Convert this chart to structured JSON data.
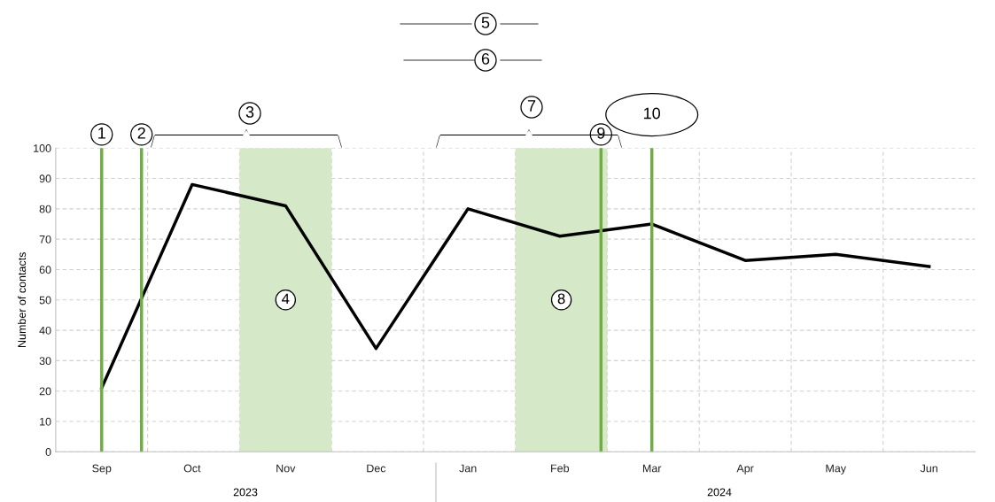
{
  "chart_data": {
    "type": "line",
    "ylabel": "Number of contacts",
    "x": [
      "2023-09-16",
      "2023-10-16",
      "2023-11-16",
      "2023-12-16",
      "2024-01-16",
      "2024-02-15",
      "2024-03-16",
      "2024-04-16",
      "2024-05-16",
      "2024-06-16"
    ],
    "series": [
      {
        "color": "#000000",
        "values": [
          21,
          88,
          81,
          34,
          80,
          71,
          75,
          63,
          65,
          61
        ]
      }
    ],
    "xlim": [
      "2023-09-01",
      "2024-07-01"
    ],
    "xticks": [
      {
        "value": "2023-09-16",
        "label": "Sep"
      },
      {
        "value": "2023-10-16",
        "label": "Oct"
      },
      {
        "value": "2023-11-16",
        "label": "Nov"
      },
      {
        "value": "2023-12-16",
        "label": "Dec"
      },
      {
        "value": "2024-01-16",
        "label": "Jan"
      },
      {
        "value": "2024-02-15",
        "label": "Feb"
      },
      {
        "value": "2024-03-16",
        "label": "Mar"
      },
      {
        "value": "2024-04-16",
        "label": "Apr"
      },
      {
        "value": "2024-05-16",
        "label": "May"
      },
      {
        "value": "2024-06-16",
        "label": "Jun"
      }
    ],
    "ylim": [
      0,
      100
    ],
    "yticks": [
      0,
      10,
      20,
      30,
      40,
      50,
      60,
      70,
      80,
      90,
      100
    ],
    "grid": true,
    "marker": "none",
    "line_style": "solid",
    "ref_lines": [
      {
        "axis": "x",
        "value": "2023-09-16",
        "label": "1",
        "color": "#70ad47"
      },
      {
        "axis": "x",
        "value": "2023-09-29",
        "label": "2",
        "color": "#70ad47"
      },
      {
        "axis": "x",
        "value": "2024-02-28",
        "label": "9",
        "color": "#70ad47"
      },
      {
        "axis": "x",
        "value": "2024-03-16",
        "label": "10",
        "color": "#70ad47"
      }
    ],
    "bands": [
      {
        "axis": "x",
        "from": "2023-11-01",
        "to": "2023-12-01",
        "label": "4",
        "color": "#d5e8c8"
      },
      {
        "axis": "x",
        "from": "2024-02-01",
        "to": "2024-03-01",
        "label": "8",
        "color": "#d5e8c8"
      }
    ],
    "annotations": [
      "3",
      "5",
      "6",
      "7",
      "2023",
      "2024"
    ]
  }
}
